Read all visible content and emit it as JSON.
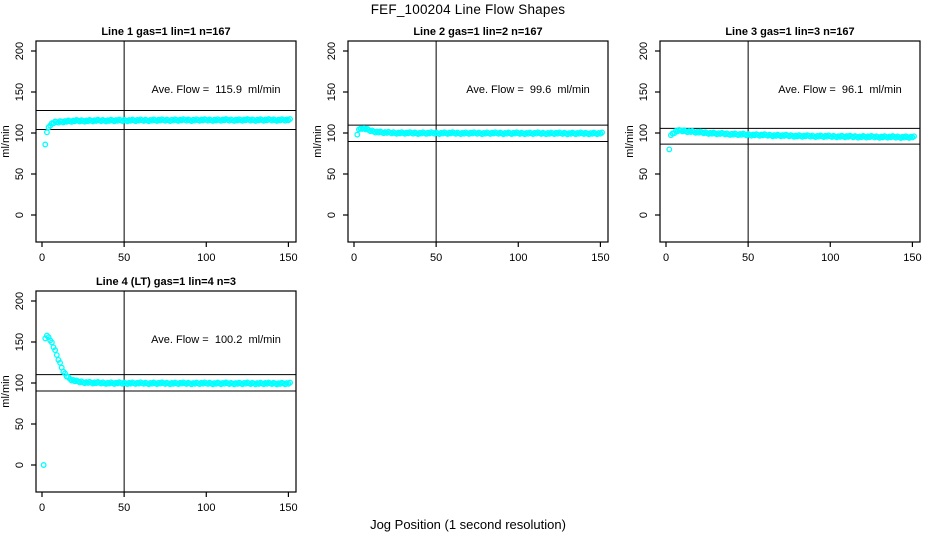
{
  "figure": {
    "title": "FEF_100204  Line Flow Shapes",
    "xlabel": "Jog Position (1 second resolution)"
  },
  "style": {
    "point_color": "#00ffff",
    "axis_color": "#000000",
    "background": "#ffffff",
    "text_color": "#000000"
  },
  "chart_data": [
    {
      "type": "scatter",
      "title": "Line 1 gas=1 lin=1 n=167",
      "ylabel": "ml/min",
      "ave_flow": 115.9,
      "ave_flow_label": "Ave. Flow =  115.9  ml/min",
      "n": 167,
      "marker": "open-circle",
      "vline_x": 50,
      "ref_line_upper": 127.5,
      "ref_line_lower": 104.3,
      "x_ticks": [
        0,
        50,
        100,
        150
      ],
      "y_ticks": [
        0,
        50,
        100,
        150,
        200
      ],
      "x_axis_range": [
        -4,
        155
      ],
      "y_axis_range": [
        -33,
        212
      ],
      "points_x_end": 151,
      "control_points": [
        [
          2,
          86
        ],
        [
          3,
          100
        ],
        [
          4,
          107
        ],
        [
          5,
          110
        ],
        [
          6,
          111.5
        ],
        [
          8,
          113
        ],
        [
          12,
          114
        ],
        [
          20,
          114.8
        ],
        [
          40,
          115.3
        ],
        [
          80,
          115.8
        ],
        [
          151,
          116
        ]
      ]
    },
    {
      "type": "scatter",
      "title": "Line 2 gas=1 lin=2 n=167",
      "ylabel": "ml/min",
      "ave_flow": 99.6,
      "ave_flow_label": "Ave. Flow =  99.6  ml/min",
      "n": 167,
      "marker": "open-circle",
      "vline_x": 50,
      "ref_line_upper": 109.6,
      "ref_line_lower": 89.6,
      "x_ticks": [
        0,
        50,
        100,
        150
      ],
      "y_ticks": [
        0,
        50,
        100,
        150,
        200
      ],
      "x_axis_range": [
        -4,
        155
      ],
      "y_axis_range": [
        -33,
        212
      ],
      "points_x_end": 151,
      "control_points": [
        [
          2,
          98
        ],
        [
          3,
          103.5
        ],
        [
          4,
          105.5
        ],
        [
          5,
          106
        ],
        [
          7,
          104.8
        ],
        [
          9,
          103.5
        ],
        [
          12,
          102
        ],
        [
          16,
          101
        ],
        [
          22,
          100.3
        ],
        [
          35,
          100
        ],
        [
          151,
          99.6
        ]
      ]
    },
    {
      "type": "scatter",
      "title": "Line 3 gas=1 lin=3 n=167",
      "ylabel": "ml/min",
      "ave_flow": 96.1,
      "ave_flow_label": "Ave. Flow =  96.1  ml/min",
      "n": 167,
      "marker": "open-circle",
      "vline_x": 50,
      "ref_line_upper": 105.7,
      "ref_line_lower": 86.5,
      "x_ticks": [
        0,
        50,
        100,
        150
      ],
      "y_ticks": [
        0,
        50,
        100,
        150,
        200
      ],
      "x_axis_range": [
        -4,
        155
      ],
      "y_axis_range": [
        -33,
        212
      ],
      "points_x_end": 151,
      "control_points": [
        [
          2,
          80
        ],
        [
          3,
          96.5
        ],
        [
          4,
          99.5
        ],
        [
          6,
          102
        ],
        [
          9,
          103
        ],
        [
          14,
          102
        ],
        [
          20,
          100.8
        ],
        [
          30,
          99.5
        ],
        [
          50,
          98
        ],
        [
          80,
          96.5
        ],
        [
          120,
          95.5
        ],
        [
          151,
          95
        ]
      ]
    },
    {
      "type": "scatter",
      "title": "Line 4 (LT) gas=1 lin=4 n=3",
      "ylabel": "ml/min",
      "ave_flow": 100.2,
      "ave_flow_label": "Ave. Flow =  100.2  ml/min",
      "n": 3,
      "marker": "open-circle",
      "vline_x": 50,
      "ref_line_upper": 110.2,
      "ref_line_lower": 90.2,
      "x_ticks": [
        0,
        50,
        100,
        150
      ],
      "y_ticks": [
        0,
        50,
        100,
        150,
        200
      ],
      "x_axis_range": [
        -4,
        155
      ],
      "y_axis_range": [
        -33,
        212
      ],
      "points_x_end": 151,
      "control_points": [
        [
          1,
          0
        ],
        [
          2,
          155
        ],
        [
          3,
          157
        ],
        [
          4,
          156
        ],
        [
          5,
          153
        ],
        [
          6,
          149
        ],
        [
          7,
          144
        ],
        [
          8,
          139
        ],
        [
          9,
          134
        ],
        [
          10,
          129
        ],
        [
          11,
          124
        ],
        [
          12,
          119
        ],
        [
          13,
          115
        ],
        [
          14,
          111.5
        ],
        [
          15,
          108.5
        ],
        [
          16,
          106.5
        ],
        [
          17,
          105
        ],
        [
          18,
          104
        ],
        [
          20,
          102.5
        ],
        [
          23,
          101.5
        ],
        [
          27,
          100.8
        ],
        [
          32,
          100.3
        ],
        [
          40,
          100
        ],
        [
          60,
          99.8
        ],
        [
          151,
          99.5
        ]
      ]
    }
  ]
}
